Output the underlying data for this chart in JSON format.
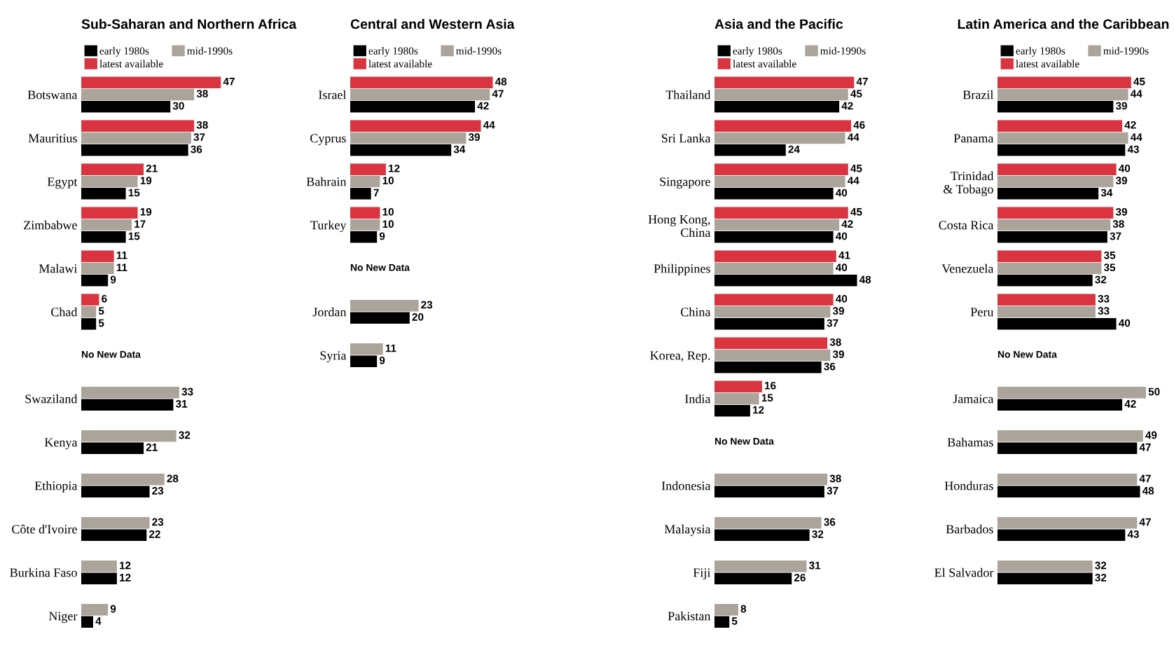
{
  "chart_data": [
    {
      "type": "bar",
      "orientation": "horizontal",
      "title": "Sub-Saharan and Northern Africa",
      "legend": "top",
      "data_labels": true,
      "tick_labels": "y",
      "annotations": [
        "No New Data"
      ],
      "categories": [
        "Botswana",
        "Mauritius",
        "Egypt",
        "Zimbabwe",
        "Malawi",
        "Chad",
        null,
        "Swaziland",
        "Kenya",
        "Ethiopia",
        "Côte d'Ivoire",
        "Burkina Faso",
        "Niger"
      ],
      "series": [
        {
          "name": "early 1980s",
          "color": "#000000",
          "values": [
            30,
            36,
            15,
            15,
            9,
            5,
            null,
            31,
            21,
            23,
            22,
            12,
            4
          ]
        },
        {
          "name": "mid-1990s",
          "color": "#aaa49a",
          "values": [
            38,
            37,
            19,
            17,
            11,
            5,
            null,
            33,
            32,
            28,
            23,
            12,
            9
          ]
        },
        {
          "name": "latest available",
          "color": "#d9343f",
          "values": [
            47,
            38,
            21,
            19,
            11,
            6,
            null,
            null,
            null,
            null,
            null,
            null,
            null
          ]
        }
      ]
    },
    {
      "type": "bar",
      "orientation": "horizontal",
      "title": "Central and Western Asia",
      "legend": "top",
      "data_labels": true,
      "tick_labels": "y",
      "annotations": [
        "No New Data"
      ],
      "categories": [
        "Israel",
        "Cyprus",
        "Bahrain",
        "Turkey",
        null,
        "Jordan",
        "Syria"
      ],
      "series": [
        {
          "name": "early 1980s",
          "color": "#000000",
          "values": [
            42,
            34,
            7,
            9,
            null,
            20,
            9
          ]
        },
        {
          "name": "mid-1990s",
          "color": "#aaa49a",
          "values": [
            47,
            39,
            10,
            10,
            null,
            23,
            11
          ]
        },
        {
          "name": "latest available",
          "color": "#d9343f",
          "values": [
            48,
            44,
            12,
            10,
            null,
            null,
            null
          ]
        }
      ]
    },
    {
      "type": "bar",
      "orientation": "horizontal",
      "title": "Asia and the Pacific",
      "legend": "top",
      "data_labels": true,
      "tick_labels": "y",
      "annotations": [
        "No New Data"
      ],
      "categories": [
        "Thailand",
        "Sri Lanka",
        "Singapore",
        "Hong Kong,\nChina",
        "Philippines",
        "China",
        "Korea, Rep.",
        "India",
        null,
        "Indonesia",
        "Malaysia",
        "Fiji",
        "Pakistan"
      ],
      "series": [
        {
          "name": "early 1980s",
          "color": "#000000",
          "values": [
            42,
            24,
            40,
            40,
            48,
            37,
            36,
            12,
            null,
            37,
            32,
            26,
            5
          ]
        },
        {
          "name": "mid-1990s",
          "color": "#aaa49a",
          "values": [
            45,
            44,
            44,
            42,
            40,
            39,
            39,
            15,
            null,
            38,
            36,
            31,
            8
          ]
        },
        {
          "name": "latest available",
          "color": "#d9343f",
          "values": [
            47,
            46,
            45,
            45,
            41,
            40,
            38,
            16,
            null,
            null,
            null,
            null,
            null
          ]
        }
      ]
    },
    {
      "type": "bar",
      "orientation": "horizontal",
      "title": "Latin America and the Caribbean",
      "legend": "top",
      "data_labels": true,
      "tick_labels": "y",
      "annotations": [
        "No New Data"
      ],
      "categories": [
        "Brazil",
        "Panama",
        "Trinidad\n& Tobago",
        "Costa Rica",
        "Venezuela",
        "Peru",
        null,
        "Jamaica",
        "Bahamas",
        "Honduras",
        "Barbados",
        "El Salvador"
      ],
      "series": [
        {
          "name": "early 1980s",
          "color": "#000000",
          "values": [
            39,
            43,
            34,
            37,
            32,
            40,
            null,
            42,
            47,
            48,
            43,
            32
          ]
        },
        {
          "name": "mid-1990s",
          "color": "#aaa49a",
          "values": [
            44,
            44,
            39,
            38,
            35,
            33,
            null,
            50,
            49,
            47,
            47,
            32
          ]
        },
        {
          "name": "latest available",
          "color": "#d9343f",
          "values": [
            45,
            42,
            40,
            39,
            35,
            33,
            null,
            null,
            null,
            null,
            null,
            null
          ]
        }
      ]
    }
  ]
}
